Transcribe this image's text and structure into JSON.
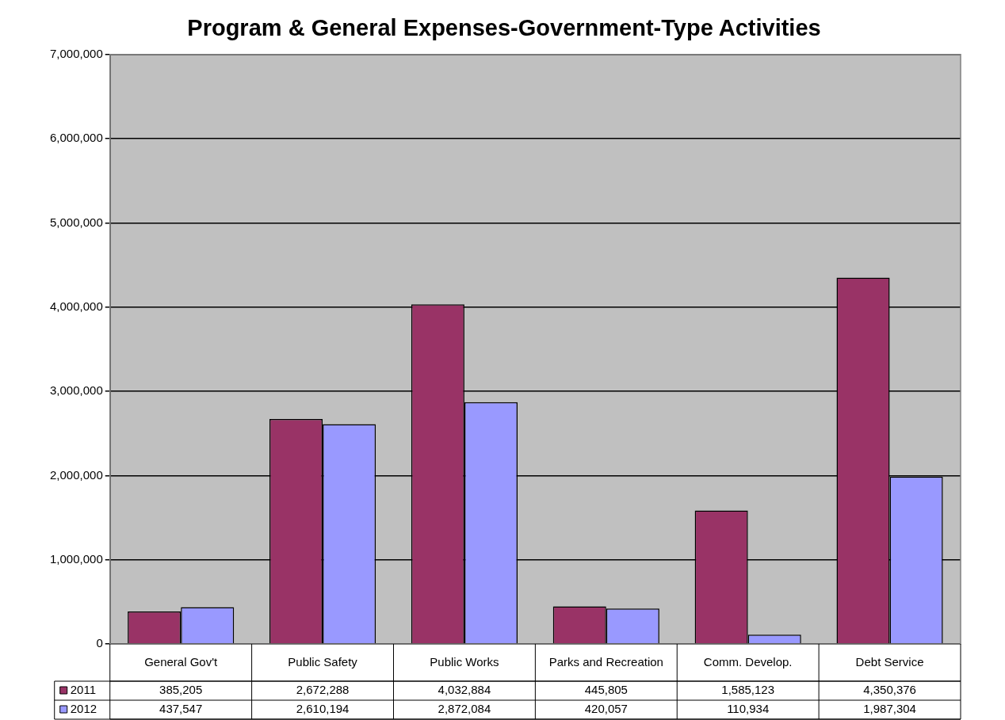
{
  "chart_data": {
    "type": "bar",
    "title": "Program & General Expenses-Government-Type Activities",
    "categories": [
      "General Gov't",
      "Public Safety",
      "Public Works",
      "Parks and Recreation",
      "Comm. Develop.",
      "Debt Service"
    ],
    "series": [
      {
        "name": "2011",
        "color": "#993366",
        "values": [
          385205,
          2672288,
          4032884,
          445805,
          1585123,
          4350376
        ],
        "value_labels": [
          "385,205",
          "2,672,288",
          "4,032,884",
          "445,805",
          "1,585,123",
          "4,350,376"
        ]
      },
      {
        "name": "2012",
        "color": "#9999ff",
        "values": [
          437547,
          2610194,
          2872084,
          420057,
          110934,
          1987304
        ],
        "value_labels": [
          "437,547",
          "2,610,194",
          "2,872,084",
          "420,057",
          "110,934",
          "1,987,304"
        ]
      }
    ],
    "ylim": [
      0,
      7000000
    ],
    "yticks": [
      {
        "value": 0,
        "label": "0"
      },
      {
        "value": 1000000,
        "label": "1,000,000"
      },
      {
        "value": 2000000,
        "label": "2,000,000"
      },
      {
        "value": 3000000,
        "label": "3,000,000"
      },
      {
        "value": 4000000,
        "label": "4,000,000"
      },
      {
        "value": 5000000,
        "label": "5,000,000"
      },
      {
        "value": 6000000,
        "label": "6,000,000"
      },
      {
        "value": 7000000,
        "label": "7,000,000"
      }
    ],
    "grid": "y",
    "legend": "bottom left"
  }
}
